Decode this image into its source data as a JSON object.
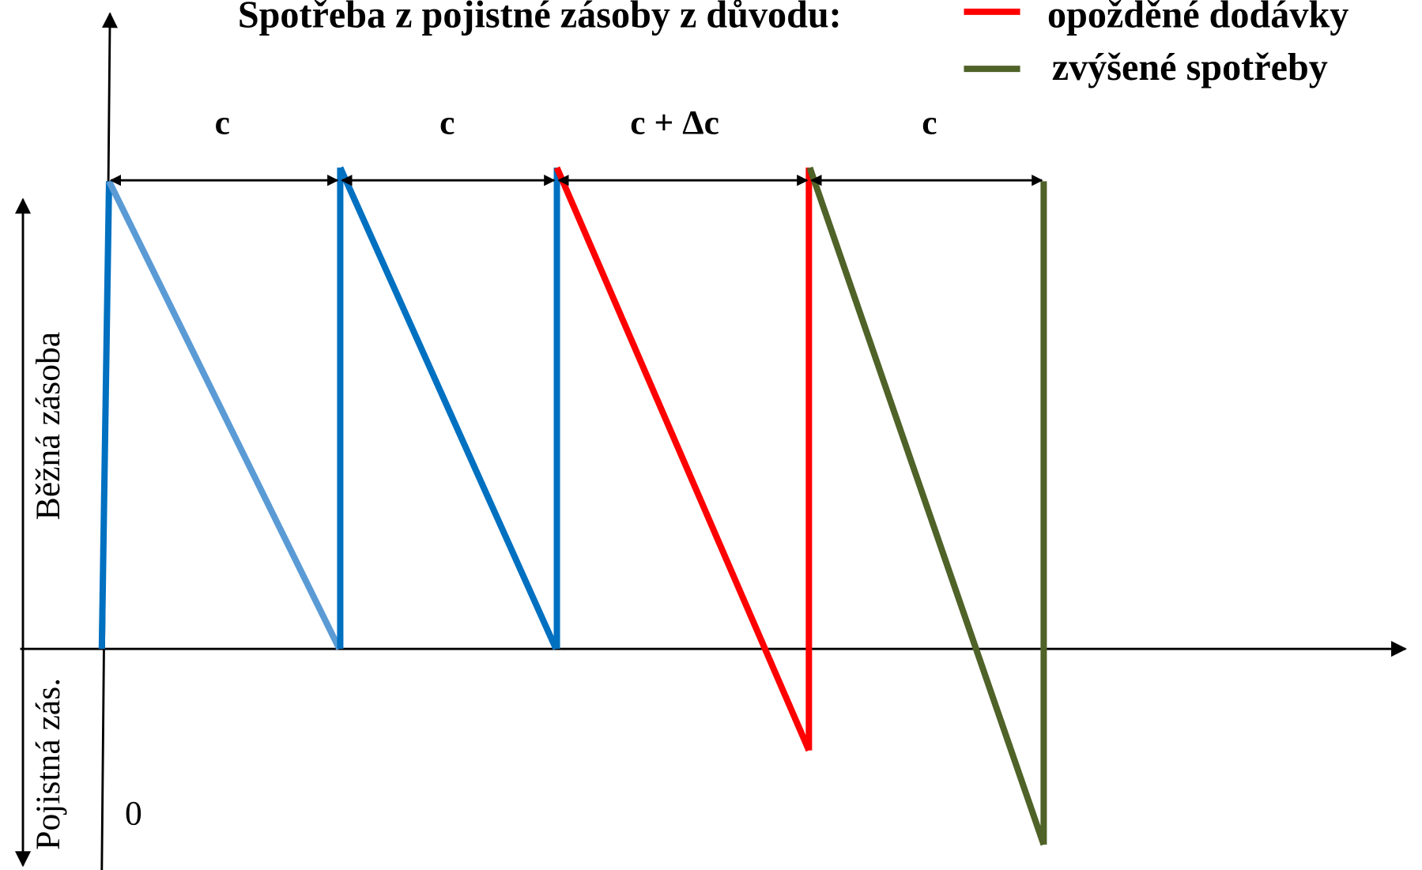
{
  "title": "Spotřeba z pojistné zásoby z důvodu:",
  "legend": [
    {
      "label": "opožděné dodávky",
      "color": "#ff0000"
    },
    {
      "label": "zvýšené spotřeby",
      "color": "#4f6228"
    }
  ],
  "intervals": [
    "c",
    "c",
    "c + Δc",
    "c"
  ],
  "axis_labels": {
    "upper": "Běžná zásoba",
    "lower": "Pojistná zás.",
    "origin": "0"
  }
}
